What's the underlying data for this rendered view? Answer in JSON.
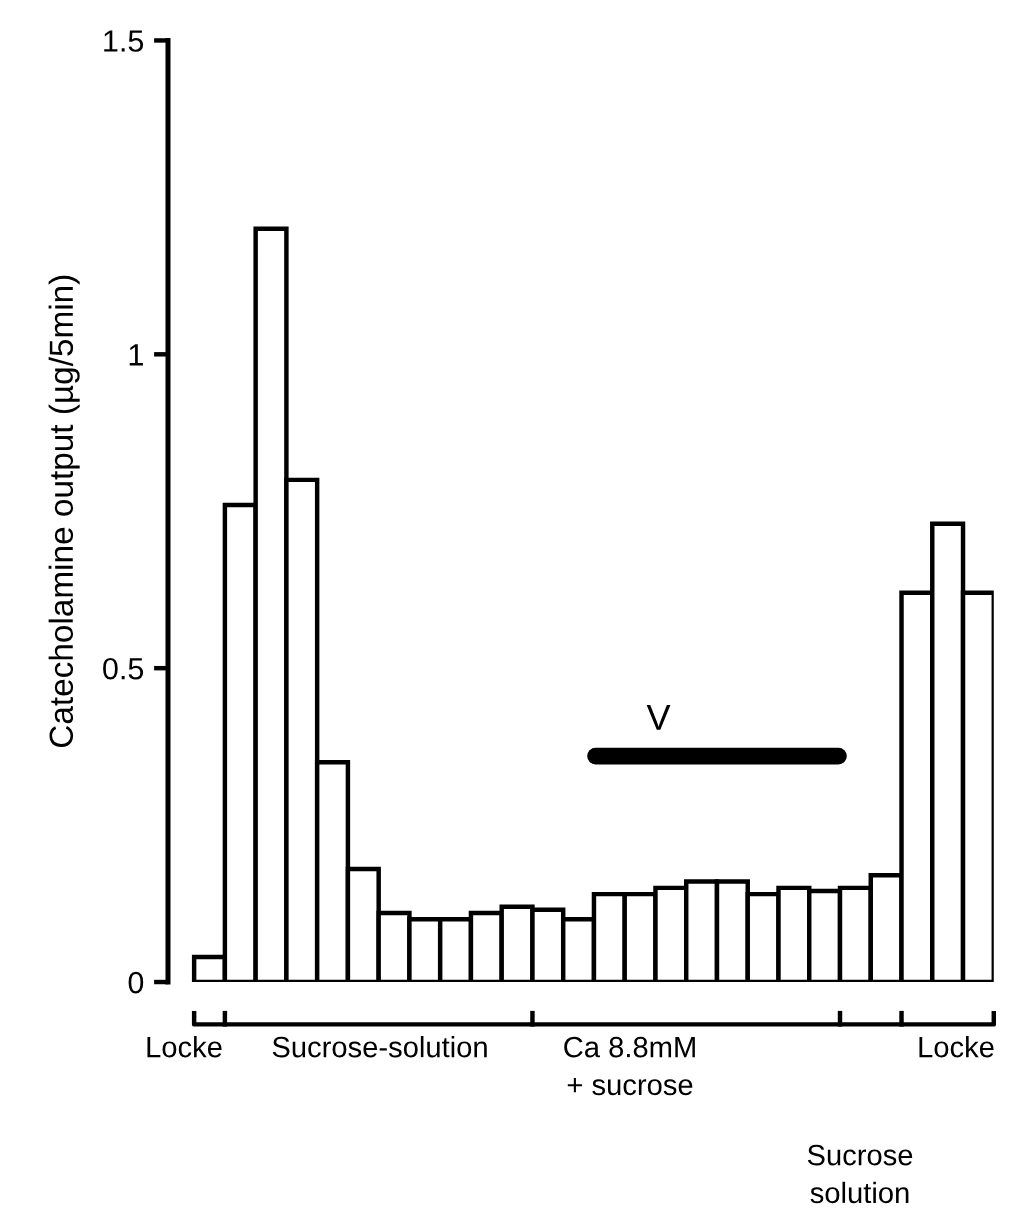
{
  "chart_data": {
    "type": "bar",
    "ylabel": "Catecholamine output (µg/5min)",
    "categories": [
      null,
      null,
      null,
      null,
      null,
      null,
      null,
      null,
      null,
      null,
      null,
      null,
      null,
      null,
      null,
      null,
      null,
      null,
      null,
      null,
      null,
      null,
      null,
      null,
      null,
      null
    ],
    "values": [
      0.04,
      0.76,
      1.2,
      0.8,
      0.35,
      0.18,
      0.11,
      0.1,
      0.1,
      0.11,
      0.12,
      0.115,
      0.1,
      0.14,
      0.14,
      0.15,
      0.16,
      0.16,
      0.14,
      0.15,
      0.145,
      0.15,
      0.17,
      0.62,
      0.73,
      0.62
    ],
    "color": "#ffffff",
    "ylim": [
      0,
      1.5
    ],
    "yticks": [
      0,
      0.5,
      1,
      1.5
    ],
    "grid": false,
    "ref_lines": [
      {
        "axis": "y",
        "value": 0.36,
        "label": "V",
        "color": "#000000"
      }
    ],
    "annotations": [
      "Locke",
      "Sucrose-solution",
      "Ca 8.8mM\n+ sucrose",
      "Sucrose\nsolution",
      "Locke"
    ]
  }
}
